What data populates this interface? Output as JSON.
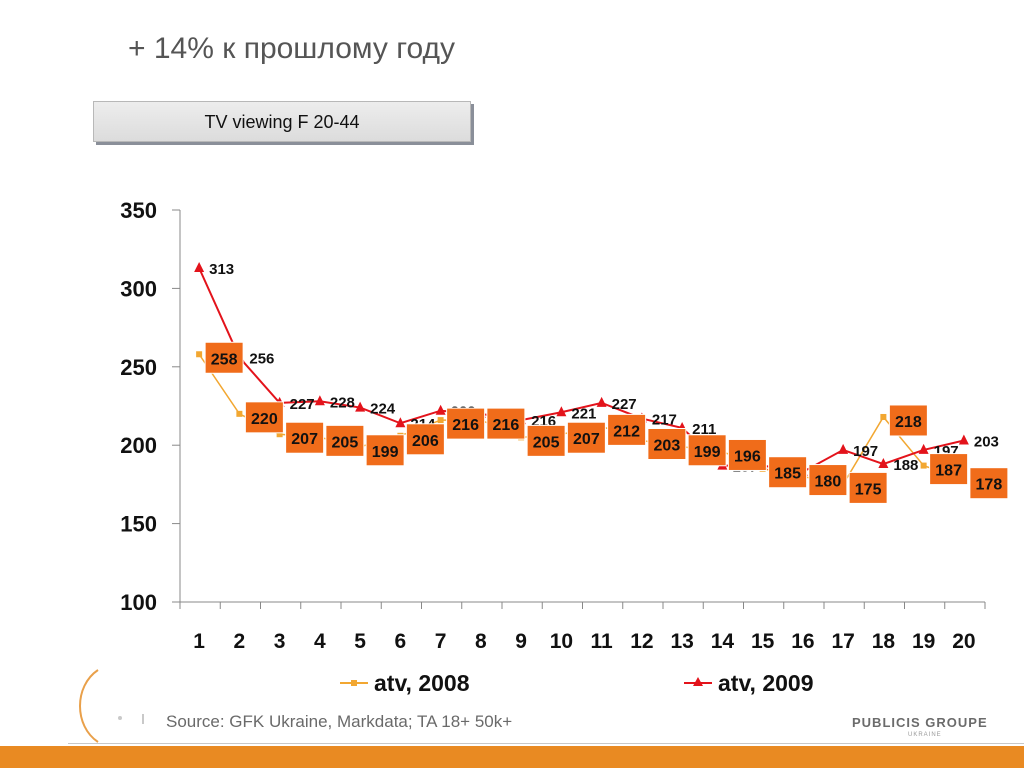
{
  "title": "+ 14% к прошлому году",
  "box_label": "TV viewing F 20-44",
  "chart_data": {
    "type": "line",
    "x": [
      "1",
      "2",
      "3",
      "4",
      "5",
      "6",
      "7",
      "8",
      "9",
      "10",
      "11",
      "12",
      "13",
      "14",
      "15",
      "16",
      "17",
      "18",
      "19",
      "20"
    ],
    "series": [
      {
        "name": "atv, 2008",
        "color": "#f2a731",
        "label_box_color": "#f06c1a",
        "values": [
          258,
          220,
          207,
          205,
          199,
          206,
          216,
          216,
          205,
          207,
          212,
          203,
          199,
          196,
          185,
          180,
          175,
          218,
          187,
          178
        ]
      },
      {
        "name": "atv, 2009",
        "color": "#e3131b",
        "values": [
          313,
          256,
          227,
          228,
          224,
          214,
          222,
          220,
          216,
          221,
          227,
          217,
          211,
          187,
          187,
          183,
          197,
          188,
          197,
          203
        ]
      }
    ],
    "ylim": [
      100,
      350
    ],
    "yticks": [
      100,
      150,
      200,
      250,
      300,
      350
    ],
    "grid": false,
    "legend_position": "bottom"
  },
  "source": "Source: GFK Ukraine, Markdata; TA 18+ 50k+",
  "brand": {
    "name": "PUBLICIS GROUPE",
    "sub": "UKRAINE"
  },
  "colors": {
    "footer_bar": "#e98a22",
    "title": "#555555"
  }
}
